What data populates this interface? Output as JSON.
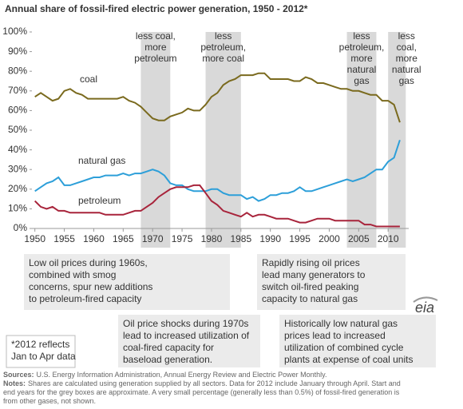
{
  "chart_data": {
    "type": "line",
    "title": "Annual share of fossil-fired electric power generation, 1950 - 2012*",
    "x": [
      1950,
      1951,
      1952,
      1953,
      1954,
      1955,
      1956,
      1957,
      1958,
      1959,
      1960,
      1961,
      1962,
      1963,
      1964,
      1965,
      1966,
      1967,
      1968,
      1969,
      1970,
      1971,
      1972,
      1973,
      1974,
      1975,
      1976,
      1977,
      1978,
      1979,
      1980,
      1981,
      1982,
      1983,
      1984,
      1985,
      1986,
      1987,
      1988,
      1989,
      1990,
      1991,
      1992,
      1993,
      1994,
      1995,
      1996,
      1997,
      1998,
      1999,
      2000,
      2001,
      2002,
      2003,
      2004,
      2005,
      2006,
      2007,
      2008,
      2009,
      2010,
      2011,
      2012
    ],
    "series": [
      {
        "name": "coal",
        "color": "#7a6a1e",
        "values": [
          67,
          69,
          67,
          65,
          66,
          70,
          71,
          69,
          68,
          66,
          66,
          66,
          66,
          66,
          66,
          67,
          65,
          64,
          62,
          59,
          56,
          55,
          55,
          57,
          58,
          59,
          61,
          60,
          60,
          63,
          67,
          69,
          73,
          75,
          76,
          78,
          78,
          78,
          79,
          79,
          76,
          76,
          76,
          76,
          75,
          75,
          77,
          76,
          74,
          74,
          73,
          72,
          71,
          71,
          70,
          70,
          69,
          68,
          68,
          65,
          65,
          63,
          54
        ]
      },
      {
        "name": "natural gas",
        "color": "#2d9fd9",
        "values": [
          19,
          21,
          23,
          24,
          26,
          22,
          22,
          23,
          24,
          25,
          26,
          26,
          27,
          27,
          27,
          28,
          27,
          28,
          28,
          29,
          30,
          29,
          27,
          23,
          22,
          22,
          20,
          19,
          19,
          19,
          20,
          20,
          18,
          17,
          17,
          17,
          15,
          16,
          14,
          15,
          17,
          17,
          18,
          18,
          19,
          21,
          19,
          19,
          20,
          21,
          22,
          23,
          24,
          25,
          24,
          25,
          26,
          28,
          30,
          30,
          34,
          36,
          45
        ]
      },
      {
        "name": "petroleum",
        "color": "#a8243b",
        "values": [
          14,
          11,
          10,
          11,
          9,
          9,
          8,
          8,
          8,
          8,
          8,
          8,
          7,
          7,
          7,
          7,
          8,
          9,
          9,
          11,
          13,
          16,
          18,
          20,
          21,
          21,
          21,
          22,
          22,
          18,
          14,
          12,
          9,
          8,
          7,
          6,
          8,
          6,
          7,
          7,
          6,
          5,
          5,
          5,
          4,
          3,
          3,
          4,
          5,
          5,
          5,
          4,
          4,
          4,
          4,
          4,
          2,
          2,
          1,
          1,
          1,
          1,
          1
        ]
      }
    ],
    "xlim": [
      1949.5,
      2013.5
    ],
    "xticks": [
      1950,
      1955,
      1960,
      1965,
      1970,
      1975,
      1980,
      1985,
      1990,
      1995,
      2000,
      2005,
      2010
    ],
    "ylim": [
      0,
      100
    ],
    "yticks": [
      {
        "value": 0,
        "label": "0%"
      },
      {
        "value": 10,
        "label": "10%"
      },
      {
        "value": 20,
        "label": "20%"
      },
      {
        "value": 30,
        "label": "30%"
      },
      {
        "value": 40,
        "label": "40%"
      },
      {
        "value": 50,
        "label": "50%"
      },
      {
        "value": 60,
        "label": "60%"
      },
      {
        "value": 70,
        "label": "70%"
      },
      {
        "value": 80,
        "label": "80%"
      },
      {
        "value": 90,
        "label": "90%"
      },
      {
        "value": 100,
        "label": "100%"
      }
    ],
    "grid": false,
    "shaded_periods": [
      {
        "start": 1968,
        "end": 1973,
        "label": [
          "less coal,",
          "more",
          "petroleum"
        ]
      },
      {
        "start": 1979,
        "end": 1985,
        "label": [
          "less",
          "petroleum,",
          "more coal"
        ]
      },
      {
        "start": 2003,
        "end": 2008,
        "label": [
          "less",
          "petroleum,",
          "more",
          "natural",
          "gas"
        ]
      },
      {
        "start": 2010,
        "end": 2013,
        "label": [
          "less",
          "coal,",
          "more",
          "natural",
          "gas"
        ]
      }
    ],
    "callouts": [
      [
        "Low oil prices during 1960s,",
        "combined with smog",
        "concerns, spur new additions",
        "to petroleum-fired capacity"
      ],
      [
        "Oil price shocks during 1970s",
        "lead to increased utilization of",
        "coal-fired capacity for",
        "baseload generation."
      ],
      [
        "Rapidly rising oil prices",
        "lead many generators to",
        "switch oil-fired peaking",
        "capacity to natural gas"
      ],
      [
        "Historically low natural gas",
        "prices lead to increased",
        "utilization of combined cycle",
        "plants at expense of coal units"
      ]
    ],
    "footnote": [
      "*2012 reflects",
      "Jan to Apr data"
    ],
    "logo": "eia",
    "sources": {
      "label": "Sources:",
      "lines": [
        "U.S. Energy Information Administration, Annual Energy Review and Electric Power Monthly."
      ]
    },
    "notes": {
      "label": "Notes:",
      "lines": [
        "Shares are calculated using generation supplied by all sectors. Data for 2012 include January through April. Start and",
        "end years for the grey boxes are approximate. A very small percentage (generally less than 0.5%) of fossil-fired generation is",
        "from other gases, not shown."
      ]
    }
  }
}
